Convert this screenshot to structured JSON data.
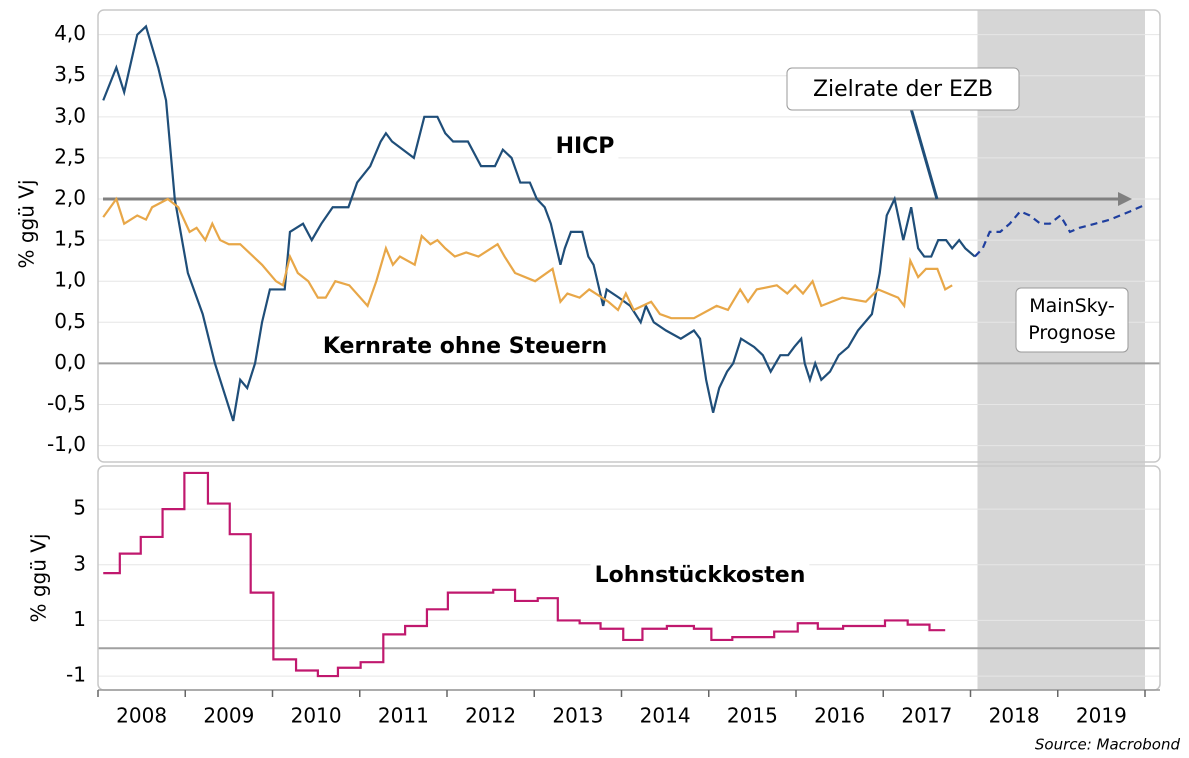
{
  "chart_data": [
    {
      "type": "line",
      "ylabel": "% ggü Vj",
      "ylim": [
        -1.2,
        4.3
      ],
      "yticks": [
        {
          "value": -1,
          "label": "-1,0"
        },
        {
          "value": -0.5,
          "label": "-0,5"
        },
        {
          "value": 0,
          "label": "0,0"
        },
        {
          "value": 0.5,
          "label": "0,5"
        },
        {
          "value": 1,
          "label": "1,0"
        },
        {
          "value": 1.5,
          "label": "1,5"
        },
        {
          "value": 2,
          "label": "2,0"
        },
        {
          "value": 2.5,
          "label": "2,5"
        },
        {
          "value": 3,
          "label": "3,0"
        },
        {
          "value": 3.5,
          "label": "3,5"
        },
        {
          "value": 4,
          "label": "4,0"
        }
      ],
      "grid": true,
      "reference_line": {
        "value": 2,
        "label": "Zielrate der EZB",
        "color": "#808080"
      },
      "shade": [
        2018.08,
        2020
      ],
      "shade_label": "MainSky-\nPrognose",
      "series": [
        {
          "name": "HICP",
          "color": "#1f4e79",
          "label_color": "#1f4e8c",
          "x": [
            2008.06,
            2008.21,
            2008.3,
            2008.45,
            2008.55,
            2008.69,
            2008.78,
            2008.88,
            2009.03,
            2009.2,
            2009.34,
            2009.55,
            2009.63,
            2009.71,
            2009.8,
            2009.88,
            2009.97,
            2010.14,
            2010.2,
            2010.35,
            2010.45,
            2010.56,
            2010.69,
            2010.87,
            2010.97,
            2011.12,
            2011.24,
            2011.3,
            2011.37,
            2011.62,
            2011.74,
            2011.89,
            2011.98,
            2012.07,
            2012.24,
            2012.39,
            2012.55,
            2012.64,
            2012.74,
            2012.84,
            2012.95,
            2013.03,
            2013.12,
            2013.19,
            2013.3,
            2013.35,
            2013.42,
            2013.55,
            2013.62,
            2013.68,
            2013.79,
            2013.83,
            2013.97,
            2014.1,
            2014.22,
            2014.28,
            2014.37,
            2014.51,
            2014.68,
            2014.83,
            2014.9,
            2014.97,
            2015.05,
            2015.12,
            2015.21,
            2015.28,
            2015.37,
            2015.52,
            2015.62,
            2015.71,
            2015.82,
            2015.91,
            2015.98,
            2016.06,
            2016.1,
            2016.16,
            2016.22,
            2016.29,
            2016.39,
            2016.49,
            2016.6,
            2016.71,
            2016.87,
            2016.96,
            2017.04,
            2017.13,
            2017.23,
            2017.32,
            2017.4,
            2017.47,
            2017.55,
            2017.63,
            2017.72,
            2017.79,
            2017.87,
            2017.94,
            2018.05
          ],
          "values": [
            3.2,
            3.6,
            3.3,
            4.0,
            4.1,
            3.6,
            3.2,
            2.0,
            1.1,
            0.6,
            0.0,
            -0.7,
            -0.2,
            -0.3,
            0.0,
            0.5,
            0.9,
            0.9,
            1.6,
            1.7,
            1.5,
            1.7,
            1.9,
            1.9,
            2.2,
            2.4,
            2.7,
            2.8,
            2.7,
            2.5,
            3.0,
            3.0,
            2.8,
            2.7,
            2.7,
            2.4,
            2.4,
            2.6,
            2.5,
            2.2,
            2.2,
            2.0,
            1.9,
            1.7,
            1.2,
            1.4,
            1.6,
            1.6,
            1.3,
            1.2,
            0.7,
            0.9,
            0.8,
            0.7,
            0.5,
            0.7,
            0.5,
            0.4,
            0.3,
            0.4,
            0.3,
            -0.2,
            -0.6,
            -0.3,
            -0.1,
            0.0,
            0.3,
            0.2,
            0.1,
            -0.1,
            0.1,
            0.1,
            0.2,
            0.3,
            0.0,
            -0.2,
            0.0,
            -0.2,
            -0.1,
            0.1,
            0.2,
            0.4,
            0.6,
            1.1,
            1.8,
            2.0,
            1.5,
            1.9,
            1.4,
            1.3,
            1.3,
            1.5,
            1.5,
            1.4,
            1.5,
            1.4,
            1.3
          ]
        },
        {
          "name": "Kernrate ohne Steuern",
          "color": "#e8a748",
          "label_color": "#e09a20",
          "x": [
            2008.06,
            2008.21,
            2008.3,
            2008.45,
            2008.55,
            2008.62,
            2008.8,
            2008.92,
            2009.05,
            2009.13,
            2009.23,
            2009.31,
            2009.4,
            2009.5,
            2009.63,
            2009.88,
            2010.04,
            2010.12,
            2010.2,
            2010.29,
            2010.41,
            2010.52,
            2010.61,
            2010.72,
            2010.88,
            2011.09,
            2011.19,
            2011.3,
            2011.38,
            2011.46,
            2011.63,
            2011.71,
            2011.81,
            2011.89,
            2011.98,
            2012.09,
            2012.22,
            2012.36,
            2012.58,
            2012.66,
            2012.78,
            2013.01,
            2013.21,
            2013.3,
            2013.38,
            2013.52,
            2013.63,
            2013.85,
            2013.96,
            2014.05,
            2014.14,
            2014.34,
            2014.44,
            2014.57,
            2014.83,
            2015.09,
            2015.22,
            2015.36,
            2015.45,
            2015.55,
            2015.78,
            2015.9,
            2015.99,
            2016.08,
            2016.19,
            2016.29,
            2016.53,
            2016.8,
            2016.94,
            2017.17,
            2017.24,
            2017.31,
            2017.4,
            2017.49,
            2017.62,
            2017.71,
            2017.79
          ],
          "values": [
            1.78,
            2.0,
            1.7,
            1.8,
            1.75,
            1.9,
            2.0,
            1.9,
            1.6,
            1.65,
            1.5,
            1.7,
            1.5,
            1.45,
            1.45,
            1.2,
            1.0,
            0.95,
            1.3,
            1.1,
            1.0,
            0.8,
            0.8,
            1.0,
            0.95,
            0.7,
            1.0,
            1.4,
            1.2,
            1.3,
            1.2,
            1.55,
            1.45,
            1.5,
            1.4,
            1.3,
            1.35,
            1.3,
            1.45,
            1.3,
            1.1,
            1.0,
            1.15,
            0.75,
            0.85,
            0.8,
            0.9,
            0.75,
            0.65,
            0.85,
            0.65,
            0.75,
            0.6,
            0.55,
            0.55,
            0.7,
            0.65,
            0.9,
            0.75,
            0.9,
            0.95,
            0.85,
            0.95,
            0.85,
            1.0,
            0.7,
            0.8,
            0.75,
            0.9,
            0.8,
            0.7,
            1.25,
            1.05,
            1.15,
            1.15,
            0.9,
            0.95
          ]
        },
        {
          "color": "#1f3f9f",
          "dashed": true,
          "x": [
            2018.05,
            2018.14,
            2018.22,
            2018.34,
            2018.45,
            2018.57,
            2018.68,
            2018.8,
            2018.91,
            2019.03,
            2019.14,
            2019.25,
            2019.43,
            2019.6,
            2019.83,
            2019.98
          ],
          "values": [
            1.3,
            1.4,
            1.6,
            1.6,
            1.7,
            1.85,
            1.8,
            1.7,
            1.7,
            1.8,
            1.6,
            1.65,
            1.7,
            1.75,
            1.85,
            1.92
          ]
        }
      ]
    },
    {
      "type": "line",
      "ylabel": "% ggü Vj",
      "ylim": [
        -1.5,
        6.55
      ],
      "yticks": [
        -1,
        1,
        3,
        5
      ],
      "grid": true,
      "xlim": [
        2008,
        2020
      ],
      "xticks": [
        2008,
        2009,
        2010,
        2011,
        2012,
        2013,
        2014,
        2015,
        2016,
        2017,
        2018,
        2019,
        2020
      ],
      "year_labels": [
        "2008",
        "2009",
        "2010",
        "2011",
        "2012",
        "2013",
        "2014",
        "2015",
        "2016",
        "2017",
        "2018",
        "2019"
      ],
      "source": "Source: Macrobond",
      "series": [
        {
          "name": "Lohnstückkosten",
          "color": "#c0186e",
          "label_color": "#a01010",
          "step": "post",
          "x": [
            2008.06,
            2008.25,
            2008.49,
            2008.74,
            2008.99,
            2009.26,
            2009.51,
            2009.75,
            2010.01,
            2010.27,
            2010.52,
            2010.75,
            2011.01,
            2011.27,
            2011.52,
            2011.77,
            2012.01,
            2012.53,
            2012.78,
            2013.04,
            2013.27,
            2013.52,
            2013.76,
            2014.02,
            2014.24,
            2014.52,
            2014.83,
            2015.03,
            2015.27,
            2015.75,
            2016.02,
            2016.25,
            2016.54,
            2017.02,
            2017.28,
            2017.53,
            2017.71
          ],
          "values": [
            2.7,
            3.4,
            4.0,
            5.0,
            6.3,
            5.2,
            4.1,
            2.0,
            -0.4,
            -0.8,
            -1.0,
            -0.7,
            -0.5,
            0.5,
            0.8,
            1.4,
            2.0,
            2.1,
            1.7,
            1.8,
            1.0,
            0.9,
            0.7,
            0.3,
            0.7,
            0.8,
            0.7,
            0.3,
            0.4,
            0.6,
            0.9,
            0.7,
            0.8,
            1.0,
            0.85,
            0.65,
            0.65
          ]
        }
      ]
    }
  ]
}
